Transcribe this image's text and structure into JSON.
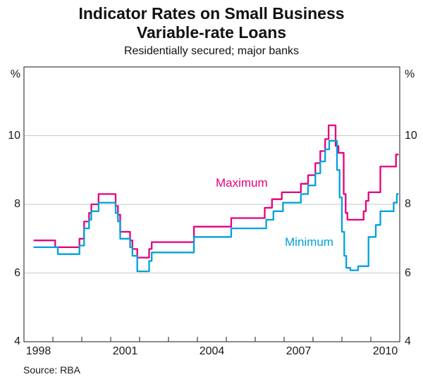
{
  "header": {
    "title_line1": "Indicator Rates on Small Business",
    "title_line2": "Variable-rate Loans",
    "subtitle": "Residentially secured; major banks"
  },
  "footer": {
    "source": "Source: RBA"
  },
  "chart_data": {
    "type": "line",
    "title": "Indicator Rates on Small Business Variable-rate Loans",
    "subtitle": "Residentially secured; major banks",
    "unit": "%",
    "x_range": [
      1998,
      2011
    ],
    "y_range": [
      4,
      12
    ],
    "y_gridlines": [
      6,
      8,
      10
    ],
    "y_tick_labels": [
      "10",
      "8",
      "6",
      "4"
    ],
    "y_tick_values": [
      10,
      8,
      6,
      4
    ],
    "x_year_ticks": [
      1999,
      2000,
      2001,
      2002,
      2003,
      2004,
      2005,
      2006,
      2007,
      2008,
      2009,
      2010
    ],
    "x_tick_labels": [
      "1998",
      "2001",
      "2004",
      "2007",
      "2010"
    ],
    "x_tick_label_years": [
      1998,
      2001,
      2004,
      2007,
      2010
    ],
    "grid_color": "#c8c8c8",
    "axis_color": "#4d4d4d",
    "legend_position": "inline-labels",
    "series_end_x": 2010.96,
    "series": [
      {
        "name": "Maximum",
        "color": "#e4017d",
        "points": [
          [
            1998.33,
            6.95
          ],
          [
            1999.08,
            6.75
          ],
          [
            1999.92,
            7.0
          ],
          [
            2000.08,
            7.5
          ],
          [
            2000.25,
            7.75
          ],
          [
            2000.33,
            8.0
          ],
          [
            2000.58,
            8.3
          ],
          [
            2001.17,
            7.95
          ],
          [
            2001.25,
            7.7
          ],
          [
            2001.33,
            7.2
          ],
          [
            2001.67,
            6.95
          ],
          [
            2001.75,
            6.7
          ],
          [
            2001.92,
            6.45
          ],
          [
            2002.33,
            6.7
          ],
          [
            2002.42,
            6.9
          ],
          [
            2003.88,
            7.35
          ],
          [
            2005.17,
            7.6
          ],
          [
            2006.33,
            7.9
          ],
          [
            2006.58,
            8.15
          ],
          [
            2006.92,
            8.35
          ],
          [
            2007.58,
            8.6
          ],
          [
            2007.83,
            8.85
          ],
          [
            2008.08,
            9.2
          ],
          [
            2008.25,
            9.55
          ],
          [
            2008.42,
            9.9
          ],
          [
            2008.54,
            10.3
          ],
          [
            2008.78,
            9.7
          ],
          [
            2008.88,
            9.5
          ],
          [
            2009.06,
            8.3
          ],
          [
            2009.13,
            7.75
          ],
          [
            2009.19,
            7.55
          ],
          [
            2009.75,
            7.8
          ],
          [
            2009.83,
            8.1
          ],
          [
            2009.92,
            8.35
          ],
          [
            2010.33,
            9.1
          ],
          [
            2010.87,
            9.45
          ]
        ]
      },
      {
        "name": "Minimum",
        "color": "#00a1df",
        "points": [
          [
            1998.33,
            6.75
          ],
          [
            1999.17,
            6.55
          ],
          [
            1999.92,
            6.8
          ],
          [
            2000.08,
            7.3
          ],
          [
            2000.25,
            7.55
          ],
          [
            2000.33,
            7.8
          ],
          [
            2000.58,
            8.05
          ],
          [
            2001.17,
            7.75
          ],
          [
            2001.25,
            7.5
          ],
          [
            2001.33,
            7.0
          ],
          [
            2001.67,
            6.75
          ],
          [
            2001.75,
            6.5
          ],
          [
            2001.92,
            6.05
          ],
          [
            2002.33,
            6.35
          ],
          [
            2002.42,
            6.6
          ],
          [
            2003.88,
            7.05
          ],
          [
            2005.17,
            7.3
          ],
          [
            2006.38,
            7.55
          ],
          [
            2006.63,
            7.8
          ],
          [
            2006.96,
            8.05
          ],
          [
            2007.58,
            8.3
          ],
          [
            2007.83,
            8.55
          ],
          [
            2008.08,
            8.9
          ],
          [
            2008.25,
            9.25
          ],
          [
            2008.42,
            9.6
          ],
          [
            2008.56,
            9.85
          ],
          [
            2008.83,
            9.0
          ],
          [
            2008.92,
            8.2
          ],
          [
            2009.0,
            7.2
          ],
          [
            2009.08,
            6.5
          ],
          [
            2009.15,
            6.15
          ],
          [
            2009.29,
            6.08
          ],
          [
            2009.56,
            6.2
          ],
          [
            2009.92,
            7.05
          ],
          [
            2010.17,
            7.4
          ],
          [
            2010.33,
            7.8
          ],
          [
            2010.79,
            8.05
          ],
          [
            2010.9,
            8.3
          ]
        ]
      }
    ]
  }
}
